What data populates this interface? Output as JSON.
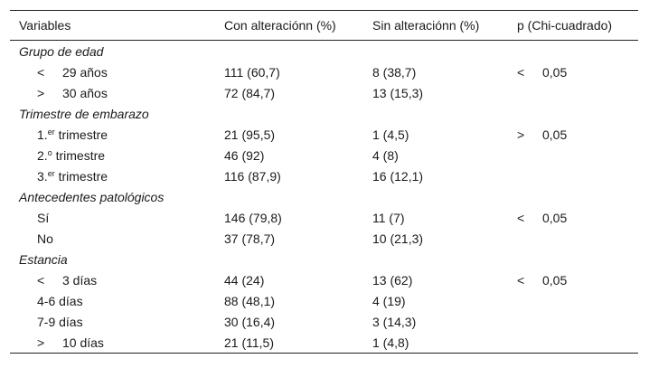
{
  "header": {
    "col1": "Variables",
    "col2": "Con alteraciónn (%)",
    "col3": "Sin alteraciónn (%)",
    "col4": "p (Chi-cuadrado)"
  },
  "groups": [
    {
      "title": "Grupo de edad",
      "rows": [
        {
          "op": "<",
          "label": "29 años",
          "con": "111 (60,7)",
          "sin": "8 (38,7)",
          "p_op": "<",
          "p_val": "0,05"
        },
        {
          "op": ">",
          "label": "30 años",
          "con": "72 (84,7)",
          "sin": "13 (15,3)",
          "p_op": "",
          "p_val": ""
        }
      ]
    },
    {
      "title": "Trimestre de embarazo",
      "rows": [
        {
          "num": "1.",
          "sup": "er",
          "label": "trimestre",
          "con": "21 (95,5)",
          "sin": "1 (4,5)",
          "p_op": ">",
          "p_val": "0,05"
        },
        {
          "num": "2.",
          "sup": "o",
          "label": "trimestre",
          "con": "46 (92)",
          "sin": "4 (8)",
          "p_op": "",
          "p_val": ""
        },
        {
          "num": "3.",
          "sup": "er",
          "label": "trimestre",
          "con": "116 (87,9)",
          "sin": "16 (12,1)",
          "p_op": "",
          "p_val": ""
        }
      ]
    },
    {
      "title": "Antecedentes patológicos",
      "rows": [
        {
          "label": "Sí",
          "con": "146 (79,8)",
          "sin": "11 (7)",
          "p_op": "<",
          "p_val": "0,05"
        },
        {
          "label": "No",
          "con": "37 (78,7)",
          "sin": "10 (21,3)",
          "p_op": "",
          "p_val": ""
        }
      ]
    },
    {
      "title": "Estancia",
      "rows": [
        {
          "op": "<",
          "label": "3 días",
          "con": "44 (24)",
          "sin": "13 (62)",
          "p_op": "<",
          "p_val": "0,05"
        },
        {
          "label": "4-6 días",
          "con": "88 (48,1)",
          "sin": "4 (19)",
          "p_op": "",
          "p_val": ""
        },
        {
          "label": "7-9 días",
          "con": "30 (16,4)",
          "sin": "3 (14,3)",
          "p_op": "",
          "p_val": ""
        },
        {
          "op": ">",
          "label": "10 días",
          "con": "21 (11,5)",
          "sin": "1 (4,8)",
          "p_op": "",
          "p_val": ""
        }
      ]
    }
  ]
}
